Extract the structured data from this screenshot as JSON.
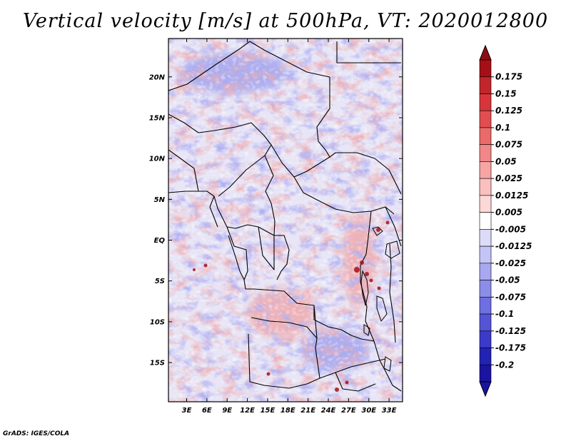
{
  "chart_data": {
    "type": "heatmap",
    "title": "Vertical velocity [m/s] at 500hPa, VT: 2020012800",
    "field": "vertical velocity",
    "units": "m/s",
    "level": "500hPa",
    "valid_time": "2020012800",
    "x_ticks": [
      {
        "value": 3,
        "label": "3E"
      },
      {
        "value": 6,
        "label": "6E"
      },
      {
        "value": 9,
        "label": "9E"
      },
      {
        "value": 12,
        "label": "12E"
      },
      {
        "value": 15,
        "label": "15E"
      },
      {
        "value": 18,
        "label": "18E"
      },
      {
        "value": 21,
        "label": "21E"
      },
      {
        "value": 24,
        "label": "24E"
      },
      {
        "value": 27,
        "label": "27E"
      },
      {
        "value": 30,
        "label": "30E"
      },
      {
        "value": 33,
        "label": "33E"
      }
    ],
    "y_ticks": [
      {
        "value": 20,
        "label": "20N"
      },
      {
        "value": 15,
        "label": "15N"
      },
      {
        "value": 10,
        "label": "10N"
      },
      {
        "value": 5,
        "label": "5N"
      },
      {
        "value": 0,
        "label": "EQ"
      },
      {
        "value": -5,
        "label": "5S"
      },
      {
        "value": -10,
        "label": "10S"
      },
      {
        "value": -15,
        "label": "15S"
      }
    ],
    "xlim": [
      0.3,
      35.0
    ],
    "ylim": [
      -19.8,
      24.7
    ],
    "colorbar": {
      "levels": [
        {
          "label": "0.175",
          "color": "#a50f15"
        },
        {
          "label": "0.15",
          "color": "#c0262c"
        },
        {
          "label": "0.125",
          "color": "#d7353b"
        },
        {
          "label": "0.1",
          "color": "#e14d51"
        },
        {
          "label": "0.075",
          "color": "#ea6a6a"
        },
        {
          "label": "0.05",
          "color": "#f18787"
        },
        {
          "label": "0.025",
          "color": "#f6a4a4"
        },
        {
          "label": "0.0125",
          "color": "#fac0c0"
        },
        {
          "label": "0.005",
          "color": "#fdd8d8"
        },
        {
          "label": "-0.005",
          "color": "#ffffff"
        },
        {
          "label": "-0.0125",
          "color": "#dcdcf9"
        },
        {
          "label": "-0.025",
          "color": "#c4c4f6"
        },
        {
          "label": "-0.05",
          "color": "#a8a8f0"
        },
        {
          "label": "-0.075",
          "color": "#8c8ce9"
        },
        {
          "label": "-0.1",
          "color": "#6f6fe1"
        },
        {
          "label": "-0.125",
          "color": "#5454d7"
        },
        {
          "label": "-0.175",
          "color": "#3a3acb"
        },
        {
          "label": "-0.2",
          "color": "#2222b4"
        }
      ],
      "top_color": "#8b0d12",
      "bottom_color": "#1a14a0"
    },
    "regions": [
      {
        "name": "central-africa-ascent",
        "lon": [
          12,
          22
        ],
        "lat": [
          -12,
          -6
        ],
        "sign": "positive"
      },
      {
        "name": "great-lakes-ascent",
        "lon": [
          26,
          31
        ],
        "lat": [
          -8,
          3
        ],
        "sign": "positive"
      },
      {
        "name": "north-subsidence",
        "lon": [
          2,
          18
        ],
        "lat": [
          18,
          23
        ],
        "sign": "negative"
      },
      {
        "name": "southern-subsidence",
        "lon": [
          20,
          30
        ],
        "lat": [
          -16,
          -11
        ],
        "sign": "negative"
      }
    ]
  },
  "footer": {
    "credit": "GrADS: IGES/COLA"
  }
}
